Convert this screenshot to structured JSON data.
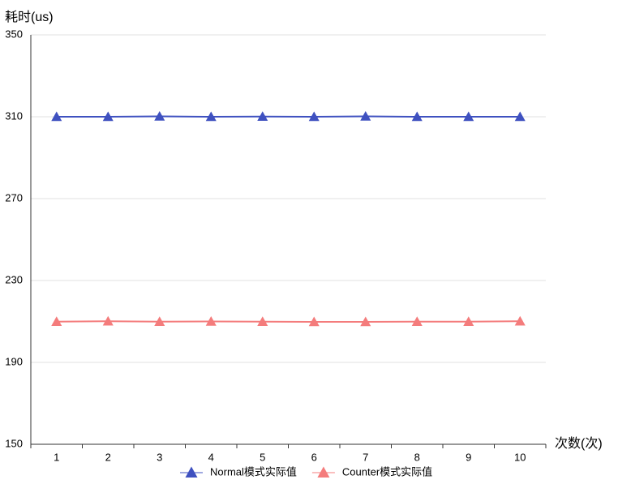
{
  "chart_data": {
    "type": "line",
    "y_axis_label": "耗时(us)",
    "x_axis_label": "次数(次)",
    "categories": [
      "1",
      "2",
      "3",
      "4",
      "5",
      "6",
      "7",
      "8",
      "9",
      "10"
    ],
    "series": [
      {
        "name": "Normal模式实际值",
        "color": "#3f51c0",
        "values": [
          310,
          310,
          310.2,
          310,
          310.1,
          310,
          310.2,
          310,
          310,
          310
        ]
      },
      {
        "name": "Counter模式实际值",
        "color": "#f47c7c",
        "values": [
          209.9,
          210.1,
          209.9,
          210,
          209.9,
          209.8,
          209.8,
          209.9,
          209.9,
          210.1
        ]
      }
    ],
    "ylim": [
      150,
      350
    ],
    "yticks": [
      150,
      190,
      230,
      270,
      310,
      350
    ],
    "grid": true
  }
}
